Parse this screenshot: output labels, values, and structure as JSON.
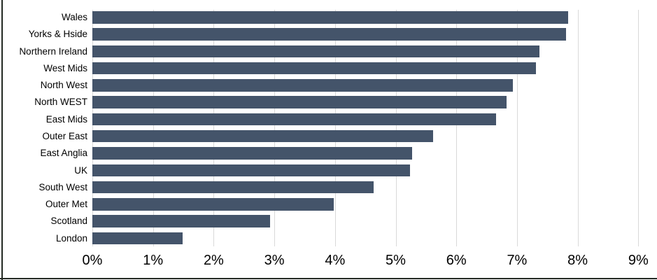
{
  "chart_data": {
    "type": "bar",
    "orientation": "horizontal",
    "title": "",
    "xlabel": "",
    "ylabel": "",
    "categories": [
      "Wales",
      "Yorks & Hside",
      "Northern Ireland",
      "West Mids",
      "North West",
      "North WEST",
      "East Mids",
      "Outer East",
      "East Anglia",
      "UK",
      "South West",
      "Outer Met",
      "Scotland",
      "London"
    ],
    "values": [
      7.84,
      7.81,
      7.37,
      7.31,
      6.93,
      6.83,
      6.66,
      5.62,
      5.27,
      5.24,
      4.64,
      3.98,
      2.93,
      1.49
    ],
    "value_unit": "percent",
    "xlim": [
      0,
      9
    ],
    "x_ticks": [
      "0%",
      "1%",
      "2%",
      "3%",
      "4%",
      "5%",
      "6%",
      "7%",
      "8%",
      "9%"
    ],
    "grid": "vertical-only",
    "legend": "none",
    "data_labels": "none",
    "colors": {
      "bar": "#44546A",
      "gridline": "#D9D9D9",
      "text": "#000000",
      "edge_line": "#232923",
      "background": "#FFFFFF"
    }
  }
}
